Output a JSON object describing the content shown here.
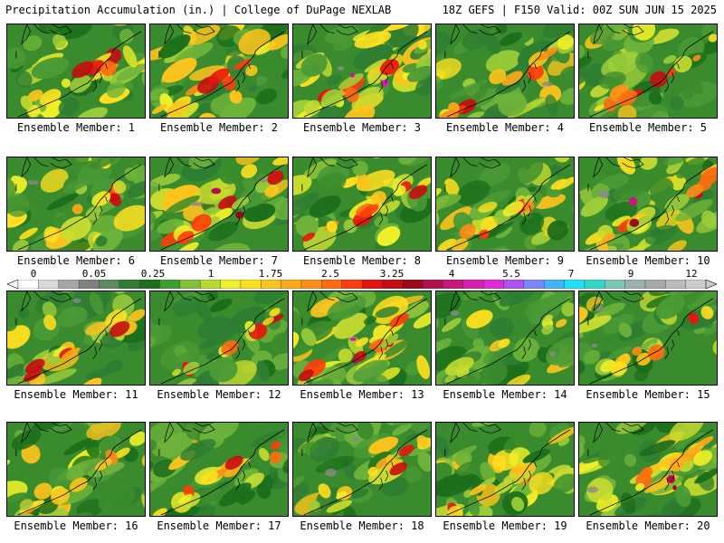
{
  "header": {
    "left_title": "Precipitation Accumulation (in.) | College of DuPage NEXLAB",
    "right_title": "18Z GEFS | F150 Valid: 00Z SUN JUN 15 2025"
  },
  "colorbar": {
    "tick_labels": [
      "0",
      "0.05",
      "0.25",
      "1",
      "1.75",
      "2.5",
      "3.25",
      "4",
      "5.5",
      "7",
      "9",
      "12"
    ],
    "colors": [
      "#ffffff",
      "#d9d9d9",
      "#a6a6a6",
      "#808080",
      "#5e8a5e",
      "#2e7d32",
      "#1b6e1b",
      "#3aa02a",
      "#7ec13a",
      "#b8d832",
      "#f0f028",
      "#ffe020",
      "#ffc41c",
      "#ffa818",
      "#ff8c14",
      "#ff6a10",
      "#ff3c0c",
      "#e8140c",
      "#c80c10",
      "#a0081c",
      "#b4104e",
      "#c8187e",
      "#d81eb0",
      "#e02ad8",
      "#b050f0",
      "#7a88ff",
      "#40b4ff",
      "#20e0ff",
      "#30d6c8",
      "#7cc8b8",
      "#9cb0ac",
      "#a8a8a8",
      "#bcbcbc",
      "#cccccc"
    ]
  },
  "members": [
    {
      "label": "Ensemble Member: 1",
      "intensity": 0.7
    },
    {
      "label": "Ensemble Member: 2",
      "intensity": 0.8
    },
    {
      "label": "Ensemble Member: 3",
      "intensity": 0.95
    },
    {
      "label": "Ensemble Member: 4",
      "intensity": 0.75
    },
    {
      "label": "Ensemble Member: 5",
      "intensity": 0.6
    },
    {
      "label": "Ensemble Member: 6",
      "intensity": 0.6
    },
    {
      "label": "Ensemble Member: 7",
      "intensity": 1.0
    },
    {
      "label": "Ensemble Member: 8",
      "intensity": 0.65
    },
    {
      "label": "Ensemble Member: 9",
      "intensity": 0.8
    },
    {
      "label": "Ensemble Member: 10",
      "intensity": 0.85
    },
    {
      "label": "Ensemble Member: 11",
      "intensity": 0.75
    },
    {
      "label": "Ensemble Member: 12",
      "intensity": 0.5
    },
    {
      "label": "Ensemble Member: 13",
      "intensity": 0.9
    },
    {
      "label": "Ensemble Member: 14",
      "intensity": 0.4
    },
    {
      "label": "Ensemble Member: 15",
      "intensity": 0.55
    },
    {
      "label": "Ensemble Member: 16",
      "intensity": 0.6
    },
    {
      "label": "Ensemble Member: 17",
      "intensity": 0.65
    },
    {
      "label": "Ensemble Member: 18",
      "intensity": 0.55
    },
    {
      "label": "Ensemble Member: 19",
      "intensity": 0.7
    },
    {
      "label": "Ensemble Member: 20",
      "intensity": 0.85
    }
  ]
}
